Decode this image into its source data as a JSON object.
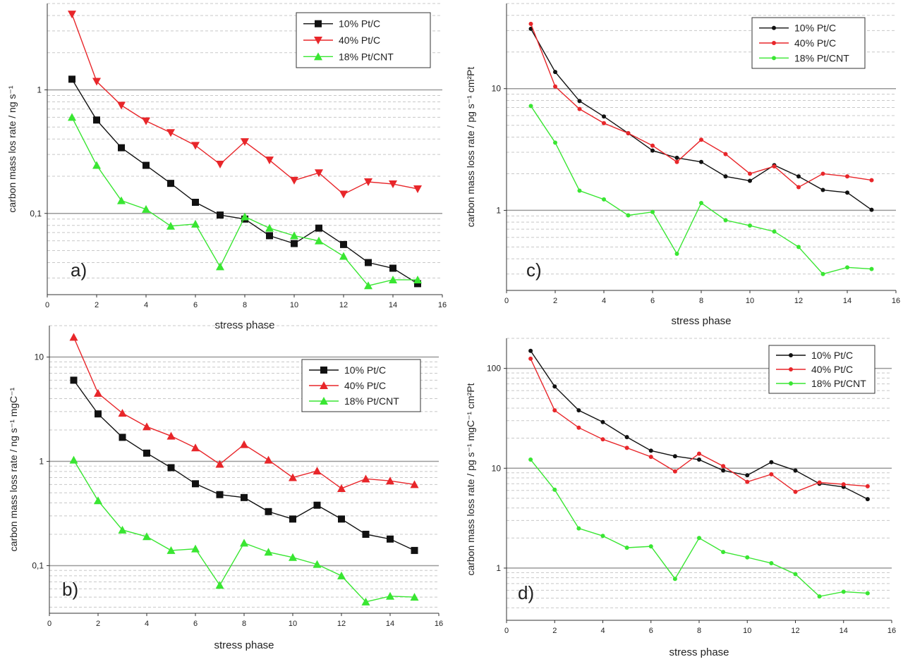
{
  "chart_data": [
    {
      "id": "a",
      "type": "line",
      "scale": "log",
      "panel_label": "a)",
      "xlabel": "stress phase",
      "ylabel": "carbon mass los rate / ng s⁻¹",
      "xlim": [
        0,
        16
      ],
      "ylim": [
        0.022,
        5
      ],
      "xticks": [
        "0",
        "2",
        "4",
        "6",
        "8",
        "10",
        "12",
        "14",
        "16"
      ],
      "yticks": [
        {
          "value": 1,
          "label": "1"
        },
        {
          "value": 0.1,
          "label": "0,1"
        }
      ],
      "legend": {
        "position": "top-right"
      },
      "x": [
        1,
        2,
        3,
        4,
        5,
        6,
        7,
        8,
        9,
        10,
        11,
        12,
        13,
        14,
        15
      ],
      "series": [
        {
          "name": "10% Pt/C",
          "color": "#111111",
          "marker": "square",
          "values": [
            1.22,
            0.57,
            0.34,
            0.245,
            0.175,
            0.123,
            0.097,
            0.09,
            0.066,
            0.057,
            0.076,
            0.056,
            0.04,
            0.036,
            0.027
          ]
        },
        {
          "name": "40% Pt/C",
          "color": "#e8262a",
          "marker": "triangle-down",
          "values": [
            4.1,
            1.17,
            0.75,
            0.56,
            0.45,
            0.355,
            0.25,
            0.38,
            0.27,
            0.185,
            0.213,
            0.143,
            0.18,
            0.173,
            0.158
          ]
        },
        {
          "name": "18% Pt/CNT",
          "color": "#39e632",
          "marker": "triangle-up",
          "values": [
            0.6,
            0.245,
            0.127,
            0.108,
            0.079,
            0.082,
            0.037,
            0.094,
            0.076,
            0.066,
            0.06,
            0.045,
            0.026,
            0.029,
            0.029
          ]
        }
      ]
    },
    {
      "id": "c",
      "type": "line",
      "scale": "log",
      "panel_label": "c)",
      "xlabel": "stress phase",
      "ylabel": "carbon mass loss rate / pg s⁻¹ cm²Pt",
      "xlim": [
        0,
        16
      ],
      "ylim": [
        0.22,
        50
      ],
      "xticks": [
        "0",
        "2",
        "4",
        "6",
        "8",
        "10",
        "12",
        "14",
        "16"
      ],
      "yticks": [
        {
          "value": 10,
          "label": "10"
        },
        {
          "value": 1,
          "label": "1"
        }
      ],
      "legend": {
        "position": "top-right"
      },
      "x": [
        1,
        2,
        3,
        4,
        5,
        6,
        7,
        8,
        9,
        10,
        11,
        12,
        13,
        14,
        15
      ],
      "series": [
        {
          "name": "10% Pt/C",
          "color": "#111111",
          "marker": "dot",
          "values": [
            31,
            13.7,
            7.9,
            5.9,
            4.3,
            3.1,
            2.7,
            2.5,
            1.9,
            1.75,
            2.35,
            1.9,
            1.47,
            1.4,
            1.01
          ]
        },
        {
          "name": "40% Pt/C",
          "color": "#e8262a",
          "marker": "dot",
          "values": [
            34,
            10.4,
            6.8,
            5.2,
            4.3,
            3.4,
            2.5,
            3.8,
            2.9,
            2.0,
            2.3,
            1.55,
            2.0,
            1.9,
            1.77
          ]
        },
        {
          "name": "18% Pt/CNT",
          "color": "#39e632",
          "marker": "dot",
          "values": [
            7.2,
            3.6,
            1.45,
            1.23,
            0.91,
            0.97,
            0.44,
            1.15,
            0.83,
            0.75,
            0.67,
            0.5,
            0.3,
            0.34,
            0.33
          ]
        }
      ]
    },
    {
      "id": "b",
      "type": "line",
      "scale": "log",
      "panel_label": "b)",
      "xlabel": "stress phase",
      "ylabel": "carbon mass loss rate / ng s⁻¹ mgC⁻¹",
      "xlim": [
        0,
        16
      ],
      "ylim": [
        0.035,
        20
      ],
      "xticks": [
        "0",
        "2",
        "4",
        "6",
        "8",
        "10",
        "12",
        "14",
        "16"
      ],
      "yticks": [
        {
          "value": 10,
          "label": "10"
        },
        {
          "value": 1,
          "label": "1"
        },
        {
          "value": 0.1,
          "label": "0,1"
        }
      ],
      "legend": {
        "position": "top-right"
      },
      "x": [
        1,
        2,
        3,
        4,
        5,
        6,
        7,
        8,
        9,
        10,
        11,
        12,
        13,
        14,
        15
      ],
      "series": [
        {
          "name": "10% Pt/C",
          "color": "#111111",
          "marker": "square",
          "values": [
            6.0,
            2.85,
            1.7,
            1.2,
            0.87,
            0.61,
            0.48,
            0.45,
            0.33,
            0.28,
            0.38,
            0.28,
            0.2,
            0.18,
            0.14
          ]
        },
        {
          "name": "40% Pt/C",
          "color": "#e8262a",
          "marker": "triangle-up",
          "values": [
            15.5,
            4.5,
            2.9,
            2.15,
            1.75,
            1.35,
            0.94,
            1.45,
            1.03,
            0.7,
            0.81,
            0.55,
            0.68,
            0.65,
            0.6
          ]
        },
        {
          "name": "18% Pt/CNT",
          "color": "#39e632",
          "marker": "triangle-up",
          "values": [
            1.03,
            0.42,
            0.22,
            0.19,
            0.14,
            0.145,
            0.065,
            0.165,
            0.135,
            0.12,
            0.103,
            0.08,
            0.045,
            0.051,
            0.05
          ]
        }
      ]
    },
    {
      "id": "d",
      "type": "line",
      "scale": "log",
      "panel_label": "d)",
      "xlabel": "stress phase",
      "ylabel": "carbon mass loss rate / pg s⁻¹ mgC⁻¹ cm²Pt",
      "xlim": [
        0,
        16
      ],
      "ylim": [
        0.3,
        200
      ],
      "xticks": [
        "0",
        "2",
        "4",
        "6",
        "8",
        "10",
        "12",
        "14",
        "16"
      ],
      "yticks": [
        {
          "value": 100,
          "label": "100"
        },
        {
          "value": 10,
          "label": "10"
        },
        {
          "value": 1,
          "label": "1"
        }
      ],
      "legend": {
        "position": "top-right"
      },
      "x": [
        1,
        2,
        3,
        4,
        5,
        6,
        7,
        8,
        9,
        10,
        11,
        12,
        13,
        14,
        15
      ],
      "series": [
        {
          "name": "10% Pt/C",
          "color": "#111111",
          "marker": "dot",
          "values": [
            150,
            66,
            38,
            29,
            20.5,
            15,
            13.2,
            12.2,
            9.5,
            8.5,
            11.5,
            9.5,
            7.0,
            6.5,
            4.9
          ]
        },
        {
          "name": "40% Pt/C",
          "color": "#e8262a",
          "marker": "dot",
          "values": [
            125,
            38,
            25.5,
            19.5,
            16,
            13,
            9.3,
            14,
            10.5,
            7.3,
            8.7,
            5.8,
            7.2,
            6.9,
            6.6
          ]
        },
        {
          "name": "18% Pt/CNT",
          "color": "#39e632",
          "marker": "dot",
          "values": [
            12.2,
            6.1,
            2.5,
            2.1,
            1.6,
            1.65,
            0.78,
            2.0,
            1.45,
            1.28,
            1.12,
            0.87,
            0.52,
            0.58,
            0.56
          ]
        }
      ]
    }
  ]
}
